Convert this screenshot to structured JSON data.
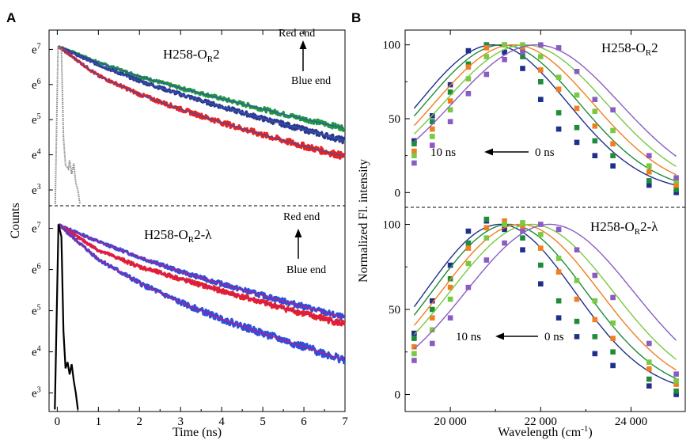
{
  "panel_a": {
    "letter": "A",
    "xlabel": "Time (ns)",
    "ylabel": "Counts",
    "top_title": "H258-O",
    "top_title_sub": "R",
    "top_title_suffix": "2",
    "bottom_title": "H258-O",
    "bottom_title_sub": "R",
    "bottom_title_suffix": "2-λ",
    "red_end": "Red end",
    "blue_end": "Blue end"
  },
  "panel_b": {
    "letter": "B",
    "xlabel_main": "Wavelength (cm",
    "xlabel_sup": "-1",
    "xlabel_close": ")",
    "ylabel": "Normalized Fl. intensity",
    "top_title": "H258-O",
    "top_title_sub": "R",
    "top_title_suffix": "2",
    "bottom_title": "H258-O",
    "bottom_title_sub": "R",
    "bottom_title_suffix": "2-λ",
    "arrow_left": "10 ns",
    "arrow_right": "0 ns"
  },
  "chart_data": [
    {
      "type": "line",
      "panel": "A-top",
      "title": "H258-O_R2",
      "xlabel": "Time (ns)",
      "ylabel": "Counts",
      "y_scale": "natural log",
      "xlim": [
        -0.2,
        7
      ],
      "ylim": [
        2.55,
        7.55
      ],
      "x_ticks": [
        "0",
        "1",
        "2",
        "3",
        "4",
        "5",
        "6",
        "7"
      ],
      "y_ticks": [
        "e7",
        "e6",
        "e5",
        "e4",
        "e3"
      ],
      "colors": {
        "green": "#1e9a3c",
        "navy": "#2b3a8c",
        "red": "#e8231f",
        "fit": "#3a4fb8",
        "irf": "#888888"
      },
      "series": [
        {
          "x": [
            0,
            1,
            2,
            3,
            4,
            5,
            6,
            7
          ],
          "y": [
            7.1,
            6.63,
            6.23,
            5.9,
            5.6,
            5.3,
            5.02,
            4.75
          ],
          "color": "green"
        },
        {
          "x": [
            0,
            1,
            2,
            3,
            4,
            5,
            6,
            7
          ],
          "y": [
            7.1,
            6.56,
            6.1,
            5.72,
            5.37,
            5.03,
            4.72,
            4.4
          ],
          "color": "navy"
        },
        {
          "x": [
            0,
            1,
            2,
            3,
            4,
            5,
            6,
            7
          ],
          "y": [
            7.1,
            6.25,
            5.72,
            5.3,
            4.92,
            4.57,
            4.25,
            3.95
          ],
          "color": "red"
        },
        {
          "x": [
            -0.05,
            0.02,
            0.1,
            0.15,
            0.2,
            0.27,
            0.3,
            0.35,
            0.4,
            0.45,
            0.5,
            0.55
          ],
          "y": [
            2.6,
            7.1,
            7.0,
            4.5,
            3.7,
            3.6,
            3.85,
            3.45,
            3.75,
            3.2,
            3.0,
            2.6
          ],
          "color": "irf",
          "dotted": true
        }
      ]
    },
    {
      "type": "line",
      "panel": "A-bottom",
      "title": "H258-O_R2-λ",
      "xlabel": "Time (ns)",
      "ylabel": "Counts",
      "y_scale": "natural log",
      "xlim": [
        -0.2,
        7
      ],
      "ylim": [
        2.55,
        7.55
      ],
      "x_ticks": [
        "0",
        "1",
        "2",
        "3",
        "4",
        "5",
        "6",
        "7"
      ],
      "y_ticks": [
        "e7",
        "e6",
        "e5",
        "e4",
        "e3"
      ],
      "colors": {
        "blue": "#2e4fd8",
        "red": "#e8231f",
        "fit": "#c8148c",
        "irf": "#000000"
      },
      "series": [
        {
          "x": [
            0,
            1,
            2,
            3,
            4,
            5,
            6,
            7
          ],
          "y": [
            7.1,
            6.68,
            6.3,
            5.95,
            5.65,
            5.37,
            5.1,
            4.82
          ],
          "color": "blue"
        },
        {
          "x": [
            0,
            1,
            2,
            3,
            4,
            5,
            6,
            7
          ],
          "y": [
            7.1,
            6.47,
            6.07,
            5.77,
            5.48,
            5.2,
            4.93,
            4.67
          ],
          "color": "red"
        },
        {
          "x": [
            0,
            1,
            2,
            3,
            4,
            5,
            6,
            7
          ],
          "y": [
            7.1,
            6.25,
            5.67,
            5.2,
            4.8,
            4.45,
            4.12,
            3.8
          ],
          "color": "blue"
        },
        {
          "x": [
            -0.06,
            0.03,
            0.1,
            0.15,
            0.2,
            0.25,
            0.3,
            0.35,
            0.4,
            0.45,
            0.5
          ],
          "y": [
            2.6,
            7.1,
            6.8,
            4.5,
            3.6,
            3.75,
            3.45,
            3.7,
            3.3,
            3.0,
            2.6
          ],
          "color": "irf"
        }
      ]
    },
    {
      "type": "scatter",
      "panel": "B-top",
      "title": "H258-O_R2",
      "xlabel": "Wavelength (cm^-1)",
      "ylabel": "Normalized Fl. intensity",
      "xlim": [
        19000,
        25200
      ],
      "ylim": [
        -10,
        110
      ],
      "x_ticks": [
        "20 000",
        "22 000",
        "24 000"
      ],
      "y_ticks": [
        "0",
        "50",
        "100"
      ],
      "series": [
        {
          "name": "10 ns",
          "color": "#1f2f8a",
          "peak": 20950,
          "width": 1650,
          "x": [
            19200,
            19600,
            20000,
            20400,
            20800,
            21200,
            21600,
            22000,
            22400,
            22800,
            23200,
            23600,
            24400,
            25000
          ],
          "y": [
            35,
            52,
            73,
            96,
            100,
            95,
            84,
            63,
            43,
            34,
            25,
            18,
            5,
            0
          ]
        },
        {
          "name": "",
          "color": "#1e8c3a",
          "peak": 21150,
          "width": 1700,
          "x": [
            19200,
            19600,
            20000,
            20400,
            20800,
            21200,
            21600,
            22000,
            22400,
            22800,
            23200,
            23600,
            24400,
            25000
          ],
          "y": [
            33,
            48,
            68,
            87,
            100,
            100,
            92,
            75,
            54,
            44,
            35,
            25,
            8,
            2
          ]
        },
        {
          "name": "",
          "color": "#f07e22",
          "peak": 21400,
          "width": 1750,
          "x": [
            19200,
            19600,
            20000,
            20400,
            20800,
            21200,
            21600,
            22000,
            22400,
            22800,
            23200,
            23600,
            24400,
            25000
          ],
          "y": [
            28,
            43,
            62,
            85,
            98,
            100,
            97,
            83,
            70,
            57,
            45,
            33,
            14,
            5
          ]
        },
        {
          "name": "",
          "color": "#7ac943",
          "peak": 21650,
          "width": 1800,
          "x": [
            19200,
            19600,
            20000,
            20400,
            20800,
            21200,
            21600,
            22000,
            22400,
            22800,
            23200,
            23600,
            24400,
            25000
          ],
          "y": [
            25,
            38,
            56,
            77,
            92,
            100,
            100,
            92,
            78,
            66,
            55,
            42,
            18,
            8
          ]
        },
        {
          "name": "0 ns",
          "color": "#8a5cc2",
          "peak": 21900,
          "width": 1850,
          "x": [
            19200,
            19600,
            20000,
            20400,
            20800,
            21200,
            21600,
            22000,
            22400,
            22800,
            23200,
            23600,
            24400,
            25000
          ],
          "y": [
            20,
            32,
            48,
            67,
            80,
            90,
            95,
            100,
            98,
            82,
            63,
            56,
            25,
            10
          ]
        }
      ]
    },
    {
      "type": "scatter",
      "panel": "B-bottom",
      "title": "H258-O_R2-λ",
      "xlabel": "Wavelength (cm^-1)",
      "ylabel": "Normalized Fl. intensity",
      "xlim": [
        19000,
        25200
      ],
      "ylim": [
        -10,
        110
      ],
      "x_ticks": [
        "20 000",
        "22 000",
        "24 000"
      ],
      "y_ticks": [
        "0",
        "50",
        "100"
      ],
      "series": [
        {
          "name": "10 ns",
          "color": "#1f2f8a",
          "peak": 21100,
          "width": 1650,
          "x": [
            19200,
            19600,
            20000,
            20400,
            20800,
            21200,
            21600,
            22000,
            22400,
            22800,
            23200,
            23600,
            24400,
            25000
          ],
          "y": [
            36,
            55,
            76,
            96,
            102,
            97,
            85,
            65,
            45,
            34,
            24,
            17,
            5,
            0
          ]
        },
        {
          "name": "",
          "color": "#1e8c3a",
          "peak": 21300,
          "width": 1700,
          "x": [
            19200,
            19600,
            20000,
            20400,
            20800,
            21200,
            21600,
            22000,
            22400,
            22800,
            23200,
            23600,
            24400,
            25000
          ],
          "y": [
            33,
            50,
            68,
            89,
            103,
            100,
            92,
            76,
            55,
            43,
            34,
            25,
            9,
            2
          ]
        },
        {
          "name": "",
          "color": "#f07e22",
          "peak": 21550,
          "width": 1750,
          "x": [
            19200,
            19600,
            20000,
            20400,
            20800,
            21200,
            21600,
            22000,
            22400,
            22800,
            23200,
            23600,
            24400,
            25000
          ],
          "y": [
            28,
            45,
            63,
            86,
            98,
            102,
            98,
            86,
            72,
            56,
            44,
            33,
            15,
            6
          ]
        },
        {
          "name": "",
          "color": "#7ac943",
          "peak": 21800,
          "width": 1800,
          "x": [
            19200,
            19600,
            20000,
            20400,
            20800,
            21200,
            21600,
            22000,
            22400,
            22800,
            23200,
            23600,
            24400,
            25000
          ],
          "y": [
            24,
            38,
            56,
            77,
            92,
            100,
            101,
            94,
            80,
            67,
            55,
            42,
            19,
            8
          ]
        },
        {
          "name": "0 ns",
          "color": "#8a5cc2",
          "peak": 22200,
          "width": 1850,
          "x": [
            19200,
            19600,
            20000,
            20400,
            20800,
            21200,
            21600,
            22000,
            22400,
            22800,
            23200,
            23600,
            24400,
            25000
          ],
          "y": [
            20,
            30,
            45,
            63,
            79,
            89,
            96,
            100,
            97,
            85,
            70,
            57,
            30,
            12
          ]
        }
      ]
    }
  ]
}
